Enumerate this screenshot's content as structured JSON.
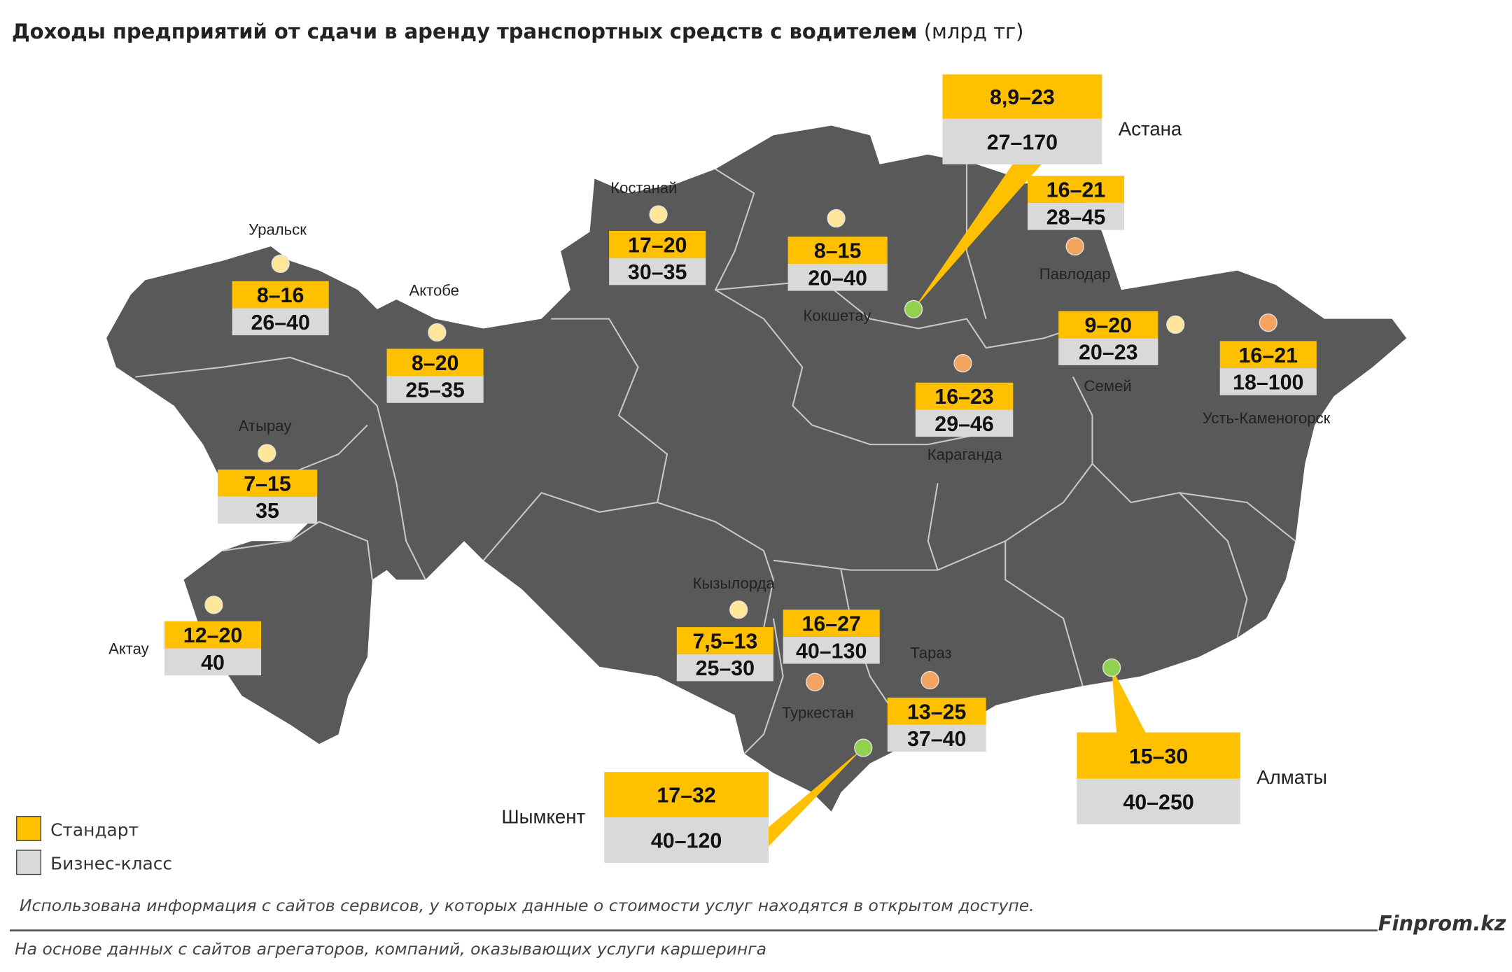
{
  "header": {
    "title": "Доходы предприятий от сдачи в аренду транспортных средств с водителем",
    "unit": "(млрд тг)"
  },
  "cities": [
    {
      "name": "Астана",
      "standard": "8,9–23",
      "business": "27–170",
      "dot_color": "#92d050"
    },
    {
      "name": "Павлодар",
      "standard": "16–21",
      "business": "28–45",
      "dot_color": "#f4a460"
    },
    {
      "name": "Кокшетау",
      "standard": "8–15",
      "business": "20–40",
      "dot_color": "#ffe699"
    },
    {
      "name": "Костанай",
      "standard": "17–20",
      "business": "30–35",
      "dot_color": "#ffe699"
    },
    {
      "name": "Уральск",
      "standard": "8–16",
      "business": "26–40",
      "dot_color": "#ffe699"
    },
    {
      "name": "Актобе",
      "standard": "8–20",
      "business": "25–35",
      "dot_color": "#ffe699"
    },
    {
      "name": "Атырау",
      "standard": "7–15",
      "business": "35",
      "dot_color": "#ffe699"
    },
    {
      "name": "Актау",
      "standard": "12–20",
      "business": "40",
      "dot_color": "#ffe699"
    },
    {
      "name": "Кызылорда",
      "standard": "7,5–13",
      "business": "25–30",
      "dot_color": "#ffe699"
    },
    {
      "name": "Туркестан",
      "standard": "16–27",
      "business": "40–130",
      "dot_color": "#f4a460"
    },
    {
      "name": "Шымкент",
      "standard": "17–32",
      "business": "40–120",
      "dot_color": "#92d050"
    },
    {
      "name": "Тараз",
      "standard": "13–25",
      "business": "37–40",
      "dot_color": "#f4a460"
    },
    {
      "name": "Алматы",
      "standard": "15–30",
      "business": "40–250",
      "dot_color": "#92d050"
    },
    {
      "name": "Караганда",
      "standard": "16–23",
      "business": "29–46",
      "dot_color": "#f4a460"
    },
    {
      "name": "Семей",
      "standard": "9–20",
      "business": "20–23",
      "dot_color": "#ffe699"
    },
    {
      "name": "Усть-Каменогорск",
      "standard": "16–21",
      "business": "18–100",
      "dot_color": "#f4a460"
    }
  ],
  "legend": {
    "standard": "Стандарт",
    "business": "Бизнес-класс",
    "standard_color": "#ffc000",
    "business_color": "#d9d9d9"
  },
  "footnote": "Использована информация с сайтов сервисов, у которых данные о стоимости услуг находятся в открытом доступе.",
  "brand": "Finprom.kz",
  "source": "На основе данных с сайтов агрегаторов, компаний, оказывающих услуги каршеринга"
}
